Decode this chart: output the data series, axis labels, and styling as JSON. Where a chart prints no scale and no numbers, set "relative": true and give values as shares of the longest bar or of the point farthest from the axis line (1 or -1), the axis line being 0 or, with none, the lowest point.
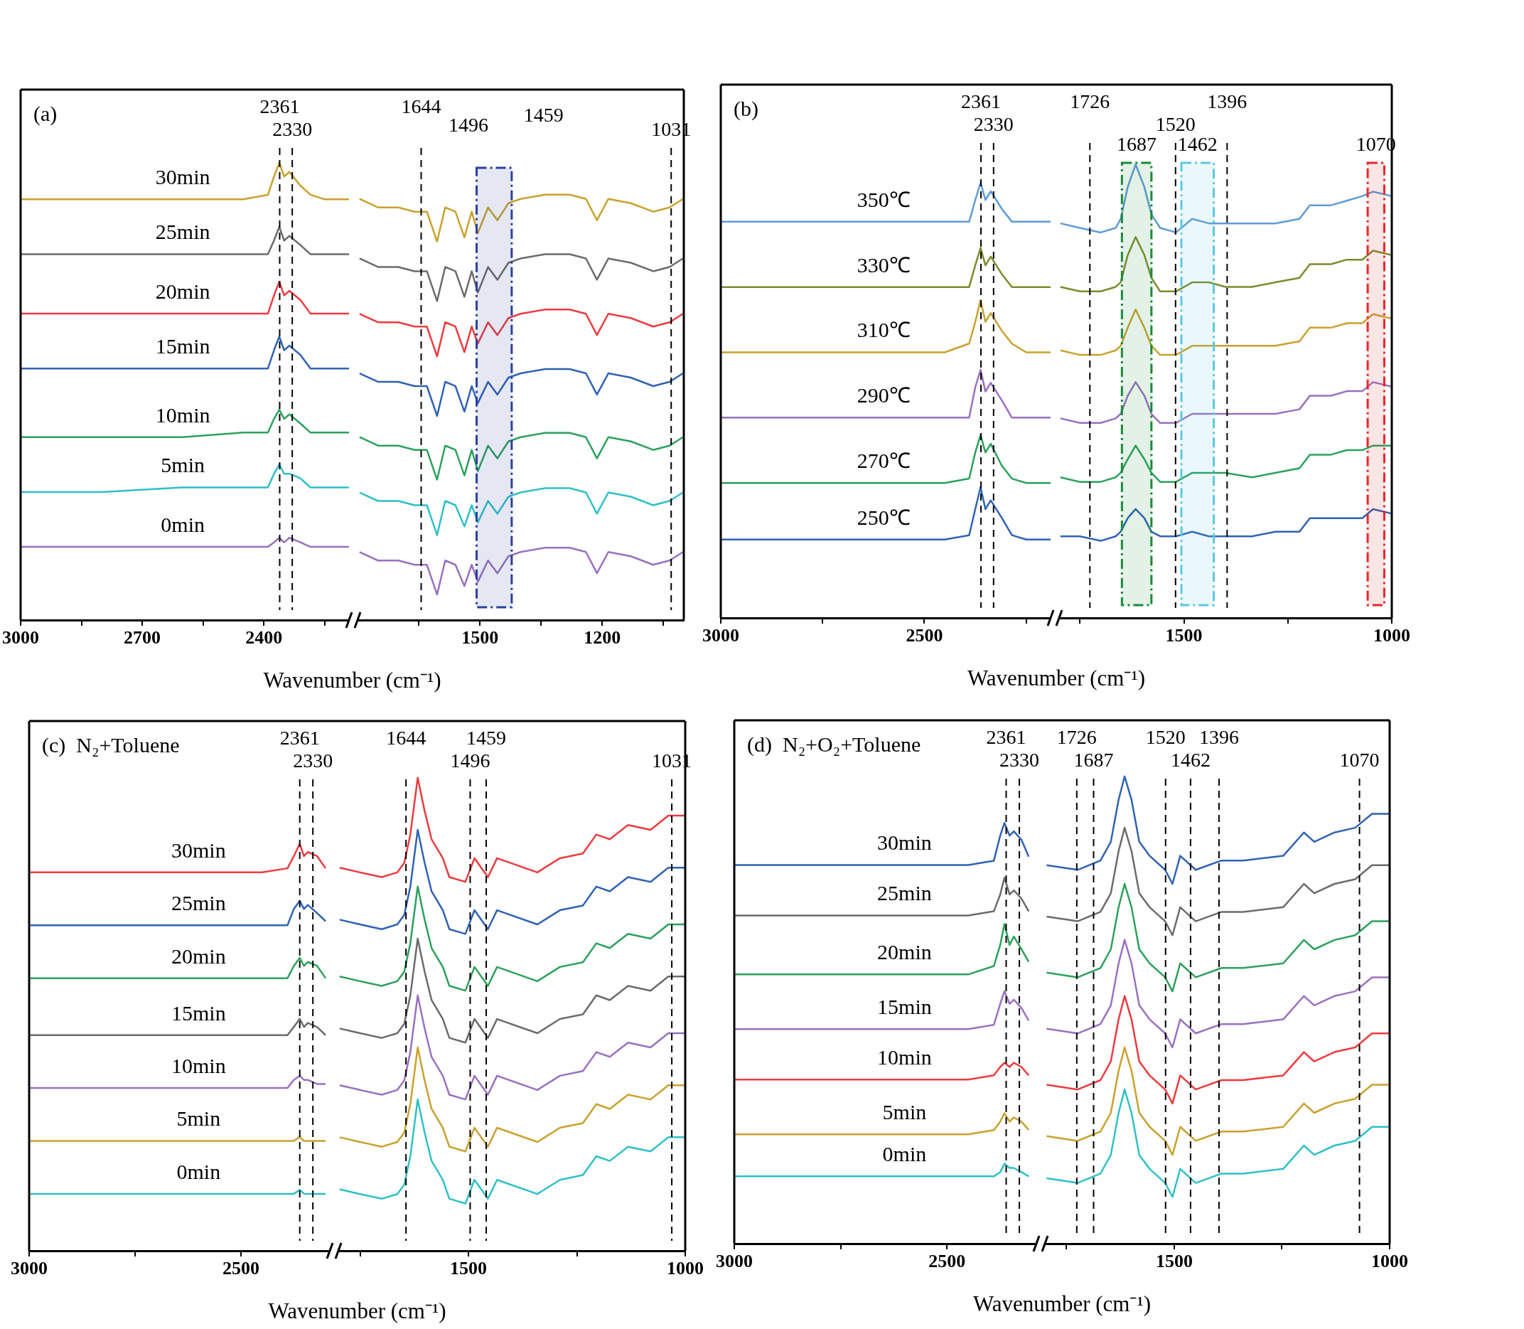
{
  "chart_data": [
    {
      "type": "line",
      "title": "(a)",
      "xlabel": "Wavenumber (cm⁻¹)",
      "relative": true,
      "xlim": [
        3000,
        2190
      ],
      "xticks": [
        3000,
        {
          "value": 2850,
          "label": null
        },
        2700,
        {
          "value": 2550,
          "label": null
        },
        2400,
        {
          "value": 2250,
          "label": null
        }
      ],
      "x": [
        3000,
        2800,
        2600,
        2450,
        2390,
        2375,
        2362,
        2350,
        2337,
        2310,
        2285,
        2250,
        2190
      ],
      "ref_lines": [
        {
          "axis": "x",
          "value": 2361,
          "label": "2361",
          "line_style": "dashed"
        },
        {
          "axis": "x",
          "value": 2330,
          "label": "2330",
          "line_style": "dashed"
        }
      ],
      "series": [
        {
          "name": "30min",
          "color": "#c9a12c",
          "values": [
            0.92,
            0.92,
            0.92,
            0.92,
            0.93,
            0.97,
            1.0,
            0.97,
            0.98,
            0.95,
            0.93,
            0.92,
            0.92
          ]
        },
        {
          "name": "25min",
          "color": "#6b6b6b",
          "values": [
            0.8,
            0.8,
            0.8,
            0.8,
            0.8,
            0.83,
            0.86,
            0.83,
            0.84,
            0.82,
            0.8,
            0.8,
            0.8
          ]
        },
        {
          "name": "20min",
          "color": "#ec3b3f",
          "values": [
            0.67,
            0.67,
            0.67,
            0.67,
            0.67,
            0.71,
            0.74,
            0.71,
            0.72,
            0.7,
            0.67,
            0.67,
            0.67
          ]
        },
        {
          "name": "15min",
          "color": "#2f62b3",
          "values": [
            0.55,
            0.55,
            0.55,
            0.55,
            0.55,
            0.59,
            0.62,
            0.59,
            0.6,
            0.58,
            0.55,
            0.55,
            0.55
          ]
        },
        {
          "name": "10min",
          "color": "#2ba15c",
          "values": [
            0.4,
            0.4,
            0.4,
            0.41,
            0.41,
            0.44,
            0.46,
            0.44,
            0.45,
            0.43,
            0.41,
            0.41,
            0.41
          ]
        },
        {
          "name": "5min",
          "color": "#2ec0c8",
          "values": [
            0.28,
            0.28,
            0.29,
            0.29,
            0.29,
            0.32,
            0.34,
            0.32,
            0.32,
            0.31,
            0.29,
            0.29,
            0.29
          ]
        },
        {
          "name": "0min",
          "color": "#9a70c0",
          "values": [
            0.16,
            0.16,
            0.16,
            0.16,
            0.16,
            0.17,
            0.18,
            0.17,
            0.18,
            0.17,
            0.16,
            0.16,
            0.16
          ]
        }
      ]
    },
    {
      "type": "line",
      "relative": true,
      "xlim": [
        1800,
        1000
      ],
      "xticks": [
        {
          "value": 1650,
          "label": null
        },
        1500,
        {
          "value": 1350,
          "label": null
        },
        1200,
        {
          "value": 1050,
          "label": null
        }
      ],
      "x": [
        1795,
        1750,
        1700,
        1660,
        1630,
        1605,
        1585,
        1560,
        1538,
        1520,
        1505,
        1480,
        1457,
        1430,
        1400,
        1340,
        1280,
        1240,
        1213,
        1185,
        1130,
        1075,
        1035,
        1002
      ],
      "ref_lines": [
        {
          "axis": "x",
          "value": 1644,
          "label": "1644",
          "line_style": "dashed"
        },
        {
          "axis": "x",
          "value": 1031,
          "label": "1031",
          "line_style": "dashed"
        }
      ],
      "bands": [
        {
          "axis": "x",
          "from": 1508,
          "to": 1422,
          "color": "#2b3fa0"
        }
      ],
      "annotations": [
        "1496",
        "1459"
      ],
      "series": [
        {
          "color": "#c9a12c",
          "values": [
            0.99,
            0.97,
            0.97,
            0.96,
            0.96,
            0.89,
            0.97,
            0.96,
            0.9,
            0.96,
            0.91,
            0.97,
            0.94,
            0.98,
            0.99,
            1.0,
            1.0,
            0.99,
            0.94,
            0.99,
            0.98,
            0.96,
            0.97,
            0.99
          ]
        },
        {
          "color": "#6b6b6b",
          "values": [
            0.85,
            0.83,
            0.83,
            0.82,
            0.82,
            0.75,
            0.83,
            0.82,
            0.76,
            0.82,
            0.77,
            0.83,
            0.8,
            0.84,
            0.85,
            0.86,
            0.86,
            0.85,
            0.8,
            0.85,
            0.84,
            0.82,
            0.83,
            0.85
          ]
        },
        {
          "color": "#ec3b3f",
          "values": [
            0.72,
            0.7,
            0.7,
            0.69,
            0.69,
            0.62,
            0.7,
            0.69,
            0.63,
            0.69,
            0.65,
            0.7,
            0.67,
            0.71,
            0.72,
            0.73,
            0.73,
            0.72,
            0.67,
            0.72,
            0.71,
            0.69,
            0.7,
            0.72
          ]
        },
        {
          "color": "#2f62b3",
          "values": [
            0.58,
            0.56,
            0.56,
            0.55,
            0.55,
            0.48,
            0.56,
            0.55,
            0.49,
            0.55,
            0.51,
            0.56,
            0.53,
            0.57,
            0.58,
            0.59,
            0.59,
            0.58,
            0.53,
            0.58,
            0.57,
            0.55,
            0.56,
            0.58
          ]
        },
        {
          "color": "#2ba15c",
          "values": [
            0.43,
            0.41,
            0.41,
            0.4,
            0.4,
            0.33,
            0.41,
            0.4,
            0.34,
            0.4,
            0.35,
            0.41,
            0.38,
            0.42,
            0.43,
            0.44,
            0.44,
            0.43,
            0.38,
            0.43,
            0.42,
            0.4,
            0.41,
            0.43
          ]
        },
        {
          "color": "#2ec0c8",
          "values": [
            0.3,
            0.28,
            0.28,
            0.27,
            0.27,
            0.2,
            0.28,
            0.27,
            0.22,
            0.27,
            0.23,
            0.28,
            0.25,
            0.29,
            0.3,
            0.31,
            0.31,
            0.3,
            0.25,
            0.3,
            0.29,
            0.27,
            0.28,
            0.3
          ]
        },
        {
          "color": "#9a70c0",
          "values": [
            0.16,
            0.14,
            0.14,
            0.13,
            0.13,
            0.06,
            0.14,
            0.13,
            0.08,
            0.13,
            0.09,
            0.14,
            0.11,
            0.15,
            0.16,
            0.17,
            0.17,
            0.16,
            0.11,
            0.16,
            0.15,
            0.13,
            0.14,
            0.16
          ]
        }
      ]
    },
    {
      "type": "line",
      "title": "(b)",
      "xlabel": "Wavenumber (cm⁻¹)",
      "relative": true,
      "xlim": [
        3000,
        2190
      ],
      "xticks": [
        3000,
        {
          "value": 2750,
          "label": null
        },
        2500,
        {
          "value": 2250,
          "label": null
        }
      ],
      "x": [
        3000,
        2800,
        2600,
        2450,
        2390,
        2375,
        2362,
        2350,
        2337,
        2310,
        2285,
        2250,
        2190
      ],
      "ref_lines": [
        {
          "axis": "x",
          "value": 2361,
          "label": "2361",
          "line_style": "dashed"
        },
        {
          "axis": "x",
          "value": 2330,
          "label": "2330",
          "line_style": "dashed"
        }
      ],
      "series": [
        {
          "name": "350℃",
          "color": "#5e9bd6",
          "values": [
            0.91,
            0.91,
            0.91,
            0.91,
            0.91,
            0.96,
            1.0,
            0.96,
            0.98,
            0.94,
            0.91,
            0.91,
            0.91
          ]
        },
        {
          "name": "330℃",
          "color": "#7e8a2c",
          "values": [
            0.76,
            0.76,
            0.76,
            0.76,
            0.76,
            0.81,
            0.85,
            0.81,
            0.83,
            0.79,
            0.76,
            0.76,
            0.76
          ]
        },
        {
          "name": "310℃",
          "color": "#c9a12c",
          "values": [
            0.61,
            0.61,
            0.61,
            0.61,
            0.63,
            0.68,
            0.73,
            0.68,
            0.7,
            0.66,
            0.63,
            0.61,
            0.61
          ]
        },
        {
          "name": "290℃",
          "color": "#9a70c0",
          "values": [
            0.46,
            0.46,
            0.46,
            0.46,
            0.46,
            0.53,
            0.57,
            0.52,
            0.54,
            0.5,
            0.46,
            0.46,
            0.46
          ]
        },
        {
          "name": "270℃",
          "color": "#2ba15c",
          "values": [
            0.31,
            0.31,
            0.31,
            0.31,
            0.32,
            0.38,
            0.42,
            0.38,
            0.4,
            0.35,
            0.32,
            0.31,
            0.31
          ]
        },
        {
          "name": "250℃",
          "color": "#2f62b3",
          "values": [
            0.18,
            0.18,
            0.18,
            0.18,
            0.19,
            0.25,
            0.3,
            0.25,
            0.27,
            0.23,
            0.19,
            0.18,
            0.18
          ]
        }
      ]
    },
    {
      "type": "line",
      "relative": true,
      "xlim": [
        1800,
        1000
      ],
      "xticks": [
        {
          "value": 1750,
          "label": null
        },
        1500,
        {
          "value": 1250,
          "label": null
        },
        1000
      ],
      "x": [
        1797,
        1750,
        1700,
        1664,
        1652,
        1635,
        1616,
        1595,
        1578,
        1557,
        1519,
        1480,
        1440,
        1400,
        1336,
        1280,
        1222,
        1197,
        1146,
        1108,
        1071,
        1045,
        1000
      ],
      "ref_lines": [
        {
          "axis": "x",
          "value": 1726,
          "label": "1726",
          "line_style": "dashed"
        },
        {
          "axis": "x",
          "value": 1520,
          "label": "1520",
          "line_style": "dashed"
        },
        {
          "axis": "x",
          "value": 1396,
          "label": "1396",
          "line_style": "dashed"
        }
      ],
      "bands": [
        {
          "axis": "x",
          "from": 1649,
          "to": 1578,
          "color": "#1a8a3a",
          "label": "1687"
        },
        {
          "axis": "x",
          "from": 1506,
          "to": 1428,
          "color": "#5bc8e0",
          "label": "1462"
        },
        {
          "axis": "x",
          "from": 1058,
          "to": 1018,
          "color": "#e8262d",
          "label": "1070"
        }
      ],
      "series": [
        {
          "color": "#5e9bd6",
          "values": [
            0.87,
            0.86,
            0.85,
            0.86,
            0.88,
            0.95,
            1.0,
            0.95,
            0.89,
            0.86,
            0.85,
            0.88,
            0.87,
            0.87,
            0.87,
            0.87,
            0.88,
            0.91,
            0.91,
            0.92,
            0.93,
            0.94,
            0.93
          ]
        },
        {
          "color": "#7e8a2c",
          "values": [
            0.73,
            0.72,
            0.72,
            0.73,
            0.74,
            0.8,
            0.84,
            0.8,
            0.75,
            0.72,
            0.72,
            0.74,
            0.74,
            0.73,
            0.73,
            0.74,
            0.75,
            0.78,
            0.78,
            0.79,
            0.79,
            0.81,
            0.8
          ]
        },
        {
          "color": "#c9a12c",
          "values": [
            0.59,
            0.58,
            0.58,
            0.59,
            0.6,
            0.64,
            0.68,
            0.64,
            0.6,
            0.58,
            0.58,
            0.6,
            0.6,
            0.6,
            0.6,
            0.6,
            0.61,
            0.64,
            0.64,
            0.65,
            0.65,
            0.67,
            0.66
          ]
        },
        {
          "color": "#9a70c0",
          "values": [
            0.44,
            0.43,
            0.43,
            0.44,
            0.45,
            0.49,
            0.52,
            0.49,
            0.45,
            0.43,
            0.43,
            0.45,
            0.45,
            0.45,
            0.45,
            0.45,
            0.46,
            0.49,
            0.49,
            0.5,
            0.5,
            0.52,
            0.51
          ]
        },
        {
          "color": "#2ba15c",
          "values": [
            0.31,
            0.3,
            0.3,
            0.31,
            0.32,
            0.35,
            0.38,
            0.35,
            0.32,
            0.3,
            0.3,
            0.32,
            0.32,
            0.32,
            0.31,
            0.32,
            0.33,
            0.36,
            0.36,
            0.37,
            0.37,
            0.38,
            0.38
          ]
        },
        {
          "color": "#2f62b3",
          "values": [
            0.18,
            0.18,
            0.17,
            0.18,
            0.19,
            0.22,
            0.24,
            0.22,
            0.19,
            0.18,
            0.18,
            0.19,
            0.18,
            0.18,
            0.18,
            0.19,
            0.19,
            0.22,
            0.22,
            0.22,
            0.22,
            0.24,
            0.23
          ]
        }
      ]
    },
    {
      "type": "line",
      "title": "(c)  N₂+Toluene",
      "xlabel": "Wavenumber (cm⁻¹)",
      "relative": true,
      "xlim": [
        3000,
        2290
      ],
      "xticks": [
        3000,
        {
          "value": 2750,
          "label": null
        },
        2500
      ],
      "x": [
        3000,
        2800,
        2600,
        2450,
        2390,
        2375,
        2361,
        2351,
        2342,
        2320,
        2300
      ],
      "ref_lines": [
        {
          "axis": "x",
          "value": 2361,
          "label": "2361",
          "line_style": "dashed"
        },
        {
          "axis": "x",
          "value": 2330,
          "label": "2330",
          "line_style": "dashed"
        }
      ],
      "series": [
        {
          "name": "30min",
          "color": "#ec3b3f",
          "values": [
            0.93,
            0.93,
            0.93,
            0.93,
            0.94,
            0.97,
            1.0,
            0.97,
            0.98,
            0.97,
            0.94
          ]
        },
        {
          "name": "25min",
          "color": "#2f62b3",
          "values": [
            0.8,
            0.8,
            0.8,
            0.8,
            0.8,
            0.84,
            0.86,
            0.84,
            0.85,
            0.83,
            0.81
          ]
        },
        {
          "name": "20min",
          "color": "#2ba15c",
          "values": [
            0.67,
            0.67,
            0.67,
            0.67,
            0.67,
            0.7,
            0.72,
            0.7,
            0.71,
            0.7,
            0.67
          ]
        },
        {
          "name": "15min",
          "color": "#6b6b6b",
          "values": [
            0.53,
            0.53,
            0.53,
            0.53,
            0.53,
            0.55,
            0.57,
            0.55,
            0.56,
            0.55,
            0.53
          ]
        },
        {
          "name": "10min",
          "color": "#9a70c0",
          "values": [
            0.4,
            0.4,
            0.4,
            0.4,
            0.4,
            0.42,
            0.43,
            0.42,
            0.42,
            0.41,
            0.41
          ]
        },
        {
          "name": "5min",
          "color": "#c9a12c",
          "values": [
            0.27,
            0.27,
            0.27,
            0.27,
            0.27,
            0.27,
            0.28,
            0.27,
            0.27,
            0.27,
            0.27
          ]
        },
        {
          "name": "0min",
          "color": "#2ec0c8",
          "values": [
            0.14,
            0.14,
            0.14,
            0.14,
            0.14,
            0.14,
            0.15,
            0.14,
            0.14,
            0.14,
            0.14
          ]
        }
      ]
    },
    {
      "type": "line",
      "relative": true,
      "xlim": [
        1800,
        1000
      ],
      "xticks": [
        {
          "value": 1750,
          "label": null
        },
        1500,
        {
          "value": 1250,
          "label": null
        },
        1000
      ],
      "x": [
        1797,
        1750,
        1700,
        1664,
        1648,
        1634,
        1617,
        1601,
        1585,
        1559,
        1544,
        1507,
        1486,
        1455,
        1434,
        1341,
        1289,
        1236,
        1205,
        1174,
        1132,
        1080,
        1039,
        1000
      ],
      "ref_lines": [
        {
          "axis": "x",
          "value": 1644,
          "label": "1644",
          "line_style": "dashed"
        },
        {
          "axis": "x",
          "value": 1496,
          "label": "1496",
          "line_style": "dashed"
        },
        {
          "axis": "x",
          "value": 1459,
          "label": "1459",
          "line_style": "dashed"
        },
        {
          "axis": "x",
          "value": 1031,
          "label": "1031",
          "line_style": "dashed"
        }
      ],
      "series": [
        {
          "color": "#ec3b3f",
          "values": [
            0.81,
            0.8,
            0.79,
            0.8,
            0.82,
            0.88,
            1.0,
            0.93,
            0.87,
            0.83,
            0.79,
            0.78,
            0.83,
            0.79,
            0.83,
            0.8,
            0.83,
            0.84,
            0.88,
            0.87,
            0.9,
            0.89,
            0.92,
            0.92
          ]
        },
        {
          "color": "#2f62b3",
          "values": [
            0.7,
            0.69,
            0.68,
            0.69,
            0.71,
            0.77,
            0.89,
            0.82,
            0.76,
            0.72,
            0.68,
            0.67,
            0.72,
            0.68,
            0.72,
            0.69,
            0.72,
            0.73,
            0.77,
            0.76,
            0.79,
            0.78,
            0.81,
            0.81
          ]
        },
        {
          "color": "#2ba15c",
          "values": [
            0.58,
            0.57,
            0.56,
            0.57,
            0.59,
            0.65,
            0.77,
            0.7,
            0.64,
            0.6,
            0.56,
            0.55,
            0.6,
            0.56,
            0.6,
            0.57,
            0.6,
            0.61,
            0.65,
            0.64,
            0.67,
            0.66,
            0.69,
            0.69
          ]
        },
        {
          "color": "#6b6b6b",
          "values": [
            0.47,
            0.46,
            0.45,
            0.46,
            0.48,
            0.54,
            0.66,
            0.59,
            0.53,
            0.49,
            0.45,
            0.44,
            0.49,
            0.45,
            0.49,
            0.46,
            0.49,
            0.5,
            0.54,
            0.53,
            0.56,
            0.55,
            0.58,
            0.58
          ]
        },
        {
          "color": "#9a70c0",
          "values": [
            0.35,
            0.34,
            0.33,
            0.34,
            0.36,
            0.42,
            0.54,
            0.47,
            0.41,
            0.37,
            0.33,
            0.32,
            0.37,
            0.33,
            0.37,
            0.34,
            0.37,
            0.38,
            0.42,
            0.41,
            0.44,
            0.43,
            0.46,
            0.46
          ]
        },
        {
          "color": "#c9a12c",
          "values": [
            0.24,
            0.23,
            0.22,
            0.23,
            0.25,
            0.31,
            0.43,
            0.36,
            0.3,
            0.26,
            0.22,
            0.21,
            0.26,
            0.22,
            0.26,
            0.23,
            0.26,
            0.27,
            0.31,
            0.3,
            0.33,
            0.32,
            0.35,
            0.35
          ]
        },
        {
          "color": "#2ec0c8",
          "values": [
            0.13,
            0.12,
            0.11,
            0.12,
            0.14,
            0.2,
            0.32,
            0.25,
            0.19,
            0.15,
            0.11,
            0.1,
            0.15,
            0.11,
            0.15,
            0.12,
            0.15,
            0.16,
            0.2,
            0.19,
            0.22,
            0.21,
            0.24,
            0.24
          ]
        }
      ]
    },
    {
      "type": "line",
      "title": "(d)  N₂+O₂+Toluene",
      "xlabel": "Wavenumber (cm⁻¹)",
      "relative": true,
      "xlim": [
        3000,
        2290
      ],
      "xticks": [
        3000,
        {
          "value": 2750,
          "label": null
        },
        2500
      ],
      "x": [
        3000,
        2800,
        2600,
        2450,
        2390,
        2375,
        2365,
        2353,
        2343,
        2325,
        2308
      ],
      "ref_lines": [
        {
          "axis": "x",
          "value": 2361,
          "label": "2361",
          "line_style": "dashed"
        },
        {
          "axis": "x",
          "value": 2330,
          "label": "2330",
          "line_style": "dashed"
        }
      ],
      "series": [
        {
          "name": "30min",
          "color": "#2f62b3",
          "values": [
            0.9,
            0.9,
            0.9,
            0.9,
            0.91,
            0.97,
            1.0,
            0.97,
            0.98,
            0.96,
            0.92
          ]
        },
        {
          "name": "25min",
          "color": "#6b6b6b",
          "values": [
            0.78,
            0.78,
            0.78,
            0.78,
            0.79,
            0.83,
            0.87,
            0.83,
            0.84,
            0.82,
            0.79
          ]
        },
        {
          "name": "20min",
          "color": "#2ba15c",
          "values": [
            0.64,
            0.64,
            0.64,
            0.64,
            0.66,
            0.71,
            0.76,
            0.71,
            0.73,
            0.7,
            0.67
          ]
        },
        {
          "name": "15min",
          "color": "#9a70c0",
          "values": [
            0.51,
            0.51,
            0.51,
            0.51,
            0.52,
            0.57,
            0.6,
            0.57,
            0.58,
            0.56,
            0.53
          ]
        },
        {
          "name": "10min",
          "color": "#ec3b3f",
          "values": [
            0.39,
            0.39,
            0.39,
            0.39,
            0.4,
            0.42,
            0.43,
            0.42,
            0.43,
            0.42,
            0.4
          ]
        },
        {
          "name": "5min",
          "color": "#c9a12c",
          "values": [
            0.26,
            0.26,
            0.26,
            0.26,
            0.27,
            0.29,
            0.31,
            0.29,
            0.3,
            0.29,
            0.27
          ]
        },
        {
          "name": "0min",
          "color": "#2ec0c8",
          "values": [
            0.16,
            0.16,
            0.16,
            0.16,
            0.16,
            0.17,
            0.19,
            0.18,
            0.18,
            0.17,
            0.16
          ]
        }
      ]
    },
    {
      "type": "line",
      "relative": true,
      "xlim": [
        1800,
        1000
      ],
      "xticks": [
        {
          "value": 1750,
          "label": null
        },
        1500,
        {
          "value": 1250,
          "label": null
        },
        1000
      ],
      "x": [
        1796,
        1724,
        1671,
        1647,
        1629,
        1615,
        1599,
        1581,
        1557,
        1521,
        1504,
        1486,
        1450,
        1390,
        1340,
        1247,
        1199,
        1175,
        1128,
        1080,
        1041,
        1000
      ],
      "ref_lines": [
        {
          "axis": "x",
          "value": 1726,
          "label": "1726",
          "line_style": "dashed"
        },
        {
          "axis": "x",
          "value": 1687,
          "label": "1687",
          "line_style": "dashed"
        },
        {
          "axis": "x",
          "value": 1520,
          "label": "1520",
          "line_style": "dashed"
        },
        {
          "axis": "x",
          "value": 1462,
          "label": "1462",
          "line_style": "dashed"
        },
        {
          "axis": "x",
          "value": 1396,
          "label": "1396",
          "line_style": "dashed"
        },
        {
          "axis": "x",
          "value": 1070,
          "label": "1070",
          "line_style": "dashed"
        }
      ],
      "series": [
        {
          "color": "#2f62b3",
          "values": [
            0.81,
            0.8,
            0.82,
            0.86,
            0.95,
            1.0,
            0.95,
            0.86,
            0.83,
            0.8,
            0.77,
            0.83,
            0.8,
            0.82,
            0.82,
            0.83,
            0.88,
            0.86,
            0.88,
            0.89,
            0.92,
            0.92
          ]
        },
        {
          "color": "#6b6b6b",
          "values": [
            0.7,
            0.69,
            0.71,
            0.75,
            0.84,
            0.89,
            0.84,
            0.75,
            0.72,
            0.69,
            0.66,
            0.72,
            0.69,
            0.71,
            0.71,
            0.72,
            0.77,
            0.75,
            0.77,
            0.78,
            0.81,
            0.81
          ]
        },
        {
          "color": "#2ba15c",
          "values": [
            0.58,
            0.57,
            0.59,
            0.63,
            0.72,
            0.77,
            0.72,
            0.63,
            0.6,
            0.57,
            0.54,
            0.6,
            0.57,
            0.59,
            0.59,
            0.6,
            0.65,
            0.63,
            0.65,
            0.66,
            0.69,
            0.69
          ]
        },
        {
          "color": "#9a70c0",
          "values": [
            0.46,
            0.45,
            0.47,
            0.51,
            0.6,
            0.65,
            0.6,
            0.51,
            0.48,
            0.45,
            0.42,
            0.48,
            0.45,
            0.47,
            0.47,
            0.48,
            0.53,
            0.51,
            0.53,
            0.54,
            0.57,
            0.57
          ]
        },
        {
          "color": "#ec3b3f",
          "values": [
            0.34,
            0.33,
            0.35,
            0.39,
            0.48,
            0.53,
            0.48,
            0.39,
            0.36,
            0.33,
            0.3,
            0.36,
            0.33,
            0.35,
            0.35,
            0.36,
            0.41,
            0.39,
            0.41,
            0.42,
            0.45,
            0.45
          ]
        },
        {
          "color": "#c9a12c",
          "values": [
            0.23,
            0.22,
            0.24,
            0.28,
            0.37,
            0.42,
            0.37,
            0.28,
            0.25,
            0.22,
            0.19,
            0.25,
            0.22,
            0.24,
            0.24,
            0.25,
            0.3,
            0.28,
            0.3,
            0.31,
            0.34,
            0.34
          ]
        },
        {
          "color": "#2ec0c8",
          "values": [
            0.14,
            0.13,
            0.15,
            0.19,
            0.28,
            0.33,
            0.28,
            0.19,
            0.16,
            0.13,
            0.1,
            0.16,
            0.13,
            0.15,
            0.15,
            0.16,
            0.21,
            0.19,
            0.21,
            0.22,
            0.25,
            0.25
          ]
        }
      ]
    }
  ]
}
